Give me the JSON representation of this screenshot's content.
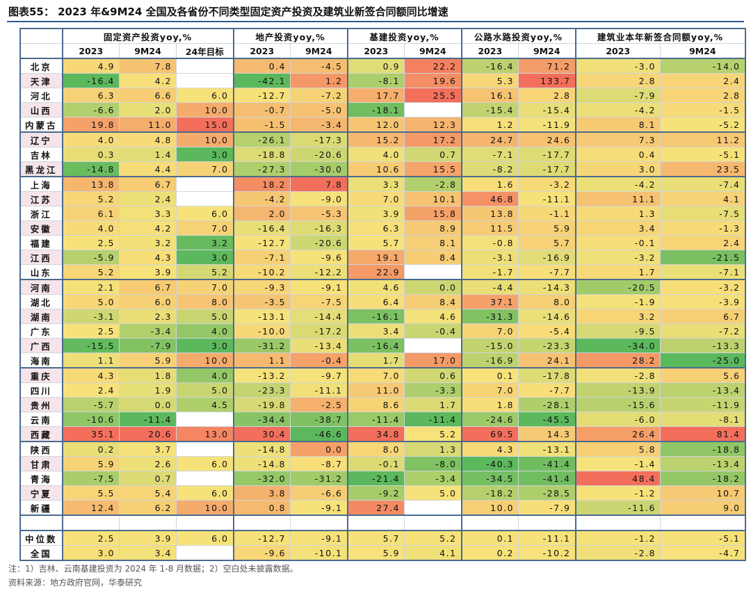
{
  "title": "图表55：  2023 年&9M24 全国及各省份不同类型固定资产投资及建筑业新签合同额同比增速",
  "groups": [
    {
      "label": "固定资产投资yoy,%",
      "cols": [
        "2023",
        "9M24",
        "24年目标"
      ]
    },
    {
      "label": "地产投资yoy,%",
      "cols": [
        "2023",
        "9M24"
      ]
    },
    {
      "label": "基建投资yoy,%",
      "cols": [
        "2023",
        "9M24"
      ]
    },
    {
      "label": "公路水路投资yoy,%",
      "cols": [
        "2023",
        "9M24"
      ]
    },
    {
      "label": "建筑业本年新签合同额yoy,%",
      "cols": [
        "2023",
        "9M24"
      ]
    }
  ],
  "rows": [
    {
      "name": "北京",
      "v": [
        "4.9",
        "7.8",
        "",
        "0.4",
        "-4.5",
        "0.9",
        "22.2",
        "-16.4",
        "71.2",
        "-3.0",
        "-14.0"
      ]
    },
    {
      "name": "天津",
      "v": [
        "-16.4",
        "4.2",
        "",
        "-42.1",
        "1.2",
        "-8.1",
        "19.6",
        "5.3",
        "133.7",
        "2.8",
        "2.4"
      ]
    },
    {
      "name": "河北",
      "v": [
        "6.3",
        "6.6",
        "6.0",
        "-12.7",
        "-7.2",
        "17.7",
        "25.5",
        "16.1",
        "2.8",
        "-7.9",
        "2.8"
      ]
    },
    {
      "name": "山西",
      "v": [
        "-6.6",
        "2.0",
        "10.0",
        "-0.7",
        "-5.0",
        "-18.1",
        "",
        "-15.4",
        "-15.4",
        "-4.2",
        "-1.5"
      ]
    },
    {
      "name": "内蒙古",
      "v": [
        "19.8",
        "11.0",
        "15.0",
        "-1.5",
        "-3.4",
        "12.0",
        "12.3",
        "1.2",
        "-11.9",
        "8.1",
        "-5.2"
      ]
    },
    {
      "name": "辽宁",
      "v": [
        "4.0",
        "4.8",
        "10.0",
        "-26.1",
        "-17.3",
        "15.2",
        "17.2",
        "24.7",
        "24.6",
        "7.3",
        "11.2"
      ]
    },
    {
      "name": "吉林",
      "v": [
        "0.3",
        "1.4",
        "3.0",
        "-18.8",
        "-20.6",
        "4.0",
        "0.7",
        "-7.1",
        "-17.7",
        "0.4",
        "-5.1"
      ]
    },
    {
      "name": "黑龙江",
      "v": [
        "-14.8",
        "4.4",
        "7.0",
        "-27.3",
        "-30.0",
        "10.6",
        "15.5",
        "-8.2",
        "-17.7",
        "3.0",
        "23.5"
      ]
    },
    {
      "name": "上海",
      "v": [
        "13.8",
        "6.7",
        "",
        "18.2",
        "7.8",
        "3.3",
        "-2.8",
        "1.6",
        "-3.2",
        "-4.2",
        "-7.4"
      ]
    },
    {
      "name": "江苏",
      "v": [
        "5.2",
        "2.4",
        "",
        "-4.2",
        "-9.0",
        "7.0",
        "10.1",
        "46.8",
        "-11.1",
        "11.1",
        "4.1"
      ]
    },
    {
      "name": "浙江",
      "v": [
        "6.1",
        "3.3",
        "6.0",
        "2.0",
        "-5.3",
        "3.9",
        "15.8",
        "13.8",
        "-1.1",
        "1.3",
        "-7.5"
      ]
    },
    {
      "name": "安徽",
      "v": [
        "4.0",
        "4.2",
        "7.0",
        "-16.4",
        "-16.3",
        "6.3",
        "8.9",
        "11.5",
        "5.9",
        "3.4",
        "-1.3"
      ]
    },
    {
      "name": "福建",
      "v": [
        "2.5",
        "3.2",
        "3.2",
        "-12.7",
        "-20.6",
        "5.7",
        "8.1",
        "-0.8",
        "5.7",
        "-0.1",
        "2.4"
      ]
    },
    {
      "name": "江西",
      "v": [
        "-5.9",
        "4.3",
        "3.0",
        "-7.1",
        "-9.6",
        "19.1",
        "8.4",
        "-3.1",
        "-16.9",
        "-3.2",
        "-21.5"
      ]
    },
    {
      "name": "山东",
      "v": [
        "5.2",
        "3.9",
        "5.2",
        "-10.2",
        "-12.2",
        "22.9",
        "",
        "-1.7",
        "-7.7",
        "1.7",
        "-7.1"
      ]
    },
    {
      "name": "河南",
      "v": [
        "2.1",
        "6.7",
        "7.0",
        "-9.3",
        "-9.1",
        "4.6",
        "0.0",
        "-4.4",
        "-14.3",
        "-20.5",
        "-3.2"
      ]
    },
    {
      "name": "湖北",
      "v": [
        "5.0",
        "6.0",
        "8.0",
        "-3.5",
        "-7.5",
        "6.4",
        "8.4",
        "37.1",
        "8.0",
        "-1.9",
        "-3.9"
      ]
    },
    {
      "name": "湖南",
      "v": [
        "-3.1",
        "2.3",
        "5.0",
        "-13.1",
        "-14.4",
        "-16.1",
        "4.6",
        "-31.3",
        "-14.6",
        "3.2",
        "6.7"
      ]
    },
    {
      "name": "广东",
      "v": [
        "2.5",
        "-3.4",
        "4.0",
        "-10.0",
        "-17.2",
        "3.4",
        "-0.4",
        "7.0",
        "-5.4",
        "-9.5",
        "-7.2"
      ]
    },
    {
      "name": "广西",
      "v": [
        "-15.5",
        "-7.9",
        "3.0",
        "-31.2",
        "-13.4",
        "-16.4",
        "",
        "-15.0",
        "-23.3",
        "-34.0",
        "-13.3"
      ]
    },
    {
      "name": "海南",
      "v": [
        "1.1",
        "5.9",
        "10.0",
        "1.1",
        "-0.4",
        "1.7",
        "17.0",
        "-16.9",
        "24.1",
        "28.2",
        "-25.0"
      ]
    },
    {
      "name": "重庆",
      "v": [
        "4.3",
        "1.8",
        "4.0",
        "-13.2",
        "-9.7",
        "7.0",
        "0.6",
        "0.1",
        "-17.8",
        "-2.8",
        "5.6"
      ]
    },
    {
      "name": "四川",
      "v": [
        "2.4",
        "1.9",
        "5.0",
        "-23.3",
        "-11.1",
        "11.0",
        "-3.3",
        "7.0",
        "-7.7",
        "-13.9",
        "-13.4"
      ]
    },
    {
      "name": "贵州",
      "v": [
        "-5.7",
        "0.0",
        "4.5",
        "-19.8",
        "-2.5",
        "8.6",
        "1.7",
        "1.8",
        "-28.1",
        "-15.6",
        "-11.9"
      ]
    },
    {
      "name": "云南",
      "v": [
        "-10.6",
        "-11.4",
        "",
        "-34.4",
        "-38.7",
        "-11.4",
        "-11.4",
        "-24.6",
        "-45.5",
        "-6.0",
        "-8.1"
      ]
    },
    {
      "name": "西藏",
      "v": [
        "35.1",
        "20.6",
        "13.0",
        "30.4",
        "-46.6",
        "34.8",
        "5.2",
        "69.5",
        "14.3",
        "26.4",
        "81.4"
      ]
    },
    {
      "name": "陕西",
      "v": [
        "0.2",
        "3.7",
        "",
        "-14.8",
        "0.0",
        "8.0",
        "1.3",
        "4.3",
        "-13.1",
        "5.8",
        "-18.8"
      ]
    },
    {
      "name": "甘肃",
      "v": [
        "5.9",
        "2.6",
        "6.0",
        "-14.8",
        "-8.7",
        "-0.1",
        "-8.0",
        "-40.3",
        "-41.4",
        "-1.4",
        "-13.4"
      ]
    },
    {
      "name": "青海",
      "v": [
        "-7.5",
        "0.7",
        "",
        "-32.0",
        "-31.2",
        "-21.4",
        "-3.4",
        "-34.5",
        "-41.4",
        "48.4",
        "-18.2"
      ]
    },
    {
      "name": "宁夏",
      "v": [
        "5.5",
        "5.4",
        "6.0",
        "3.8",
        "-6.6",
        "-9.2",
        "5.0",
        "-18.2",
        "-28.5",
        "-1.2",
        "10.7"
      ]
    },
    {
      "name": "新疆",
      "v": [
        "12.4",
        "6.2",
        "10.0",
        "0.8",
        "-9.1",
        "27.4",
        "",
        "10.0",
        "-7.9",
        "-11.6",
        "9.0"
      ]
    }
  ],
  "summary": [
    {
      "name": "中位数",
      "v": [
        "2.5",
        "3.9",
        "6.0",
        "-12.7",
        "-9.1",
        "5.7",
        "5.2",
        "0.1",
        "-11.1",
        "-1.2",
        "-5.1"
      ]
    },
    {
      "name": "全国",
      "v": [
        "3.0",
        "3.4",
        "",
        "-9.6",
        "-10.1",
        "5.9",
        "4.1",
        "0.2",
        "-10.2",
        "-2.8",
        "-4.7"
      ]
    }
  ],
  "notes": [
    "注：1）吉林、云南基建投资为 2024 年 1-8 月数据；2）空白处未披露数据。",
    "资料来源：地方政府官网，华泰研究"
  ],
  "colors": {
    "green": "#5cb85c",
    "yellow": "#f7e27a",
    "red": "#f36f5c",
    "region": "#f5e4ea",
    "grid": "#cfd4dc",
    "separator": "#4a6a8c",
    "title_line": "#2b5797"
  }
}
